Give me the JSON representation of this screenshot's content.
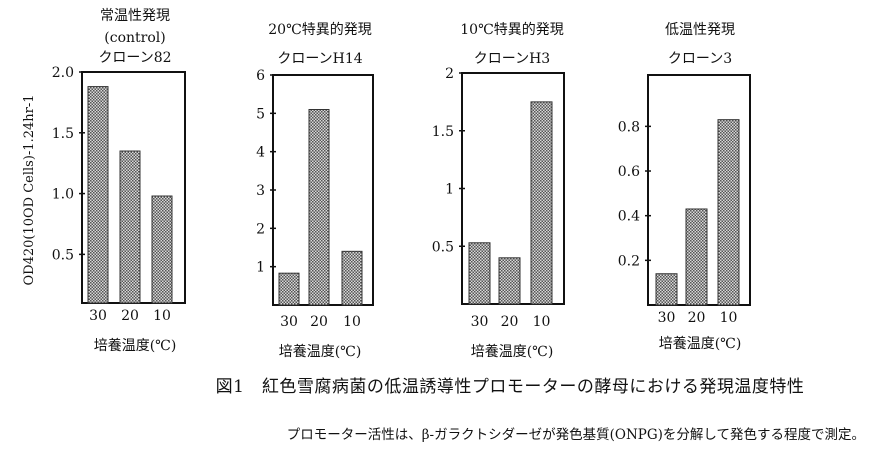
{
  "chart_data": [
    {
      "type": "bar",
      "title_lines": [
        "常温性発現",
        "(control)",
        "クローン82"
      ],
      "ylabel": "OD420(10OD Cells)-1.24hr-1",
      "xlabel": "培養温度(℃)",
      "categories": [
        "30",
        "20",
        "10"
      ],
      "values": [
        1.88,
        1.35,
        0.98
      ],
      "yticks": [
        0.5,
        1.0,
        1.5,
        2.0
      ],
      "ytick_labels": [
        "0.5",
        "1.0",
        "1.5",
        "2.0"
      ],
      "ylim": [
        0.1,
        2.0
      ],
      "grid": false
    },
    {
      "type": "bar",
      "title_lines": [
        "20℃特異的発現",
        "クローンH14"
      ],
      "xlabel": "培養温度(℃)",
      "categories": [
        "30",
        "20",
        "10"
      ],
      "values": [
        0.83,
        5.1,
        1.4
      ],
      "yticks": [
        1,
        2,
        3,
        4,
        5,
        6
      ],
      "ytick_labels": [
        "1",
        "2",
        "3",
        "4",
        "5",
        "6"
      ],
      "ylim": [
        0,
        6
      ],
      "grid": false
    },
    {
      "type": "bar",
      "title_lines": [
        "10℃特異的発現",
        "クローンH3"
      ],
      "xlabel": "培養温度(℃)",
      "categories": [
        "30",
        "20",
        "10"
      ],
      "values": [
        0.53,
        0.4,
        1.75
      ],
      "yticks": [
        0.5,
        1,
        1.5,
        2
      ],
      "ytick_labels": [
        "0.5",
        "1",
        "1.5",
        "2"
      ],
      "ylim": [
        0,
        2
      ],
      "grid": false
    },
    {
      "type": "bar",
      "title_lines": [
        "低温性発現",
        "クローン3"
      ],
      "xlabel": "培養温度(℃)",
      "categories": [
        "30",
        "20",
        "10"
      ],
      "values": [
        0.14,
        0.43,
        0.83
      ],
      "yticks": [
        0.2,
        0.4,
        0.6,
        0.8
      ],
      "ytick_labels": [
        "0.2",
        "0.4",
        "0.6",
        "0.8"
      ],
      "ylim": [
        0,
        1.03
      ],
      "grid": false
    }
  ],
  "caption": "図1　紅色雪腐病菌の低温誘導性プロモーターの酵母における発現温度特性",
  "note": "プロモーター活性は、β-ガラクトシダーゼが発色基質(ONPG)を分解して発色する程度で測定。",
  "colors": {
    "bar": "#8a8a8a",
    "axis": "#111111"
  }
}
